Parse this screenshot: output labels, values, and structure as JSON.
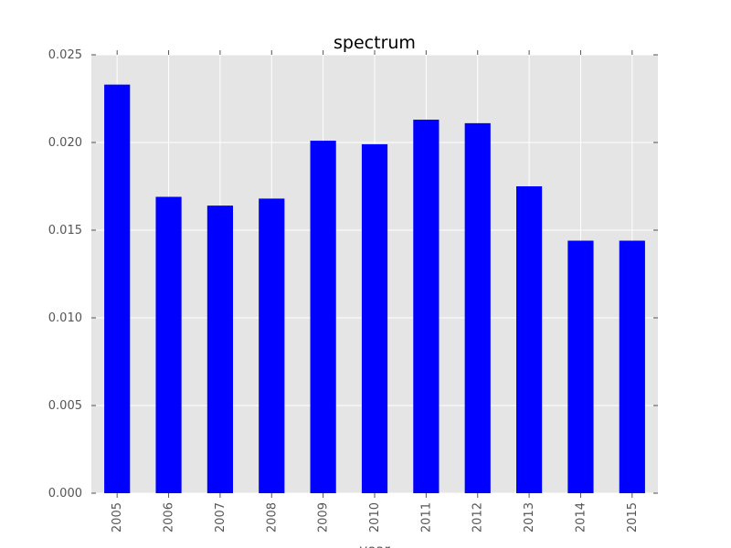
{
  "chart_data": {
    "type": "bar",
    "title": "spectrum",
    "xlabel": "year",
    "ylabel": "",
    "categories": [
      "2005",
      "2006",
      "2007",
      "2008",
      "2009",
      "2010",
      "2011",
      "2012",
      "2013",
      "2014",
      "2015"
    ],
    "values": [
      0.0233,
      0.0169,
      0.0164,
      0.0168,
      0.0201,
      0.0199,
      0.0213,
      0.0211,
      0.0175,
      0.0144,
      0.0144
    ],
    "ylim": [
      0,
      0.025
    ],
    "yticks": [
      "0.000",
      "0.005",
      "0.010",
      "0.015",
      "0.020",
      "0.025"
    ],
    "grid": true,
    "bar_color": "#0000ff",
    "plot_background": "#e5e5e5"
  }
}
